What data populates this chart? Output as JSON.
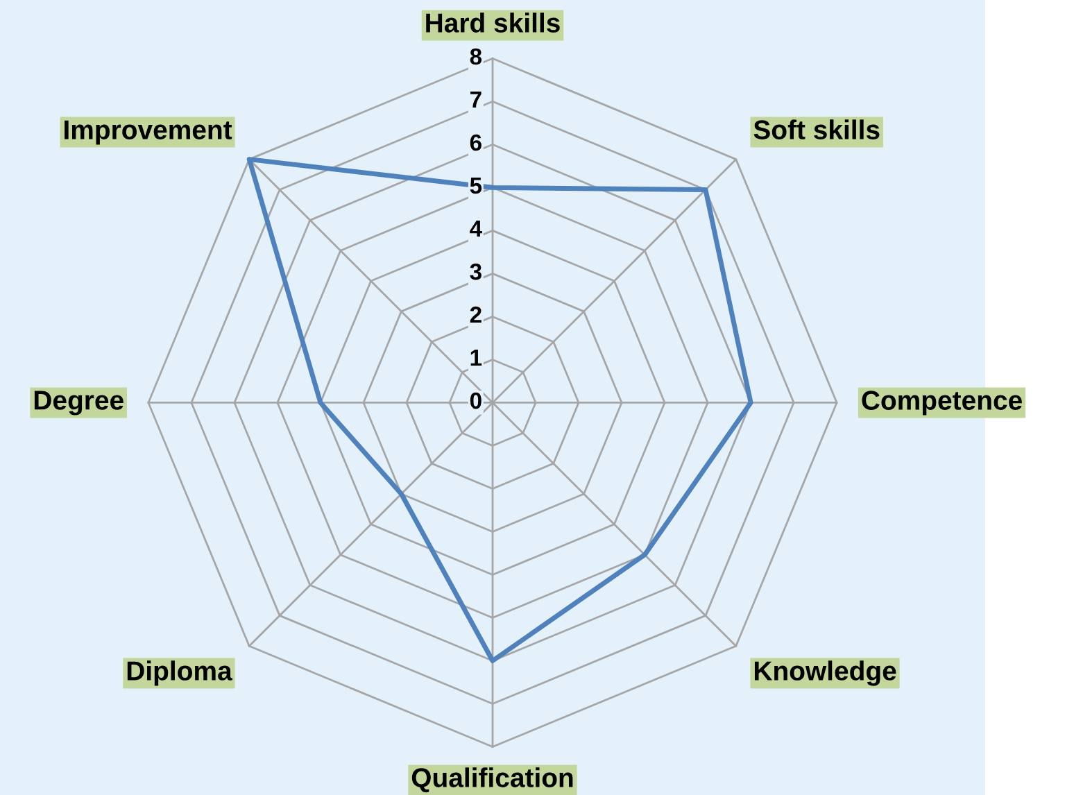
{
  "chart_data": {
    "type": "radar",
    "categories": [
      "Hard skills",
      "Soft skills",
      "Competence",
      "Knowledge",
      "Qualification",
      "Diploma",
      "Degree",
      "Improvement"
    ],
    "series": [
      {
        "color": "#4f81bd",
        "values": [
          5,
          7,
          6,
          5,
          6,
          3,
          4,
          8
        ]
      }
    ],
    "ylim": [
      0,
      8
    ],
    "yticks": [
      0,
      1,
      2,
      3,
      4,
      5,
      6,
      7,
      8
    ],
    "grid": true,
    "marker": "none",
    "line_style": "solid"
  }
}
